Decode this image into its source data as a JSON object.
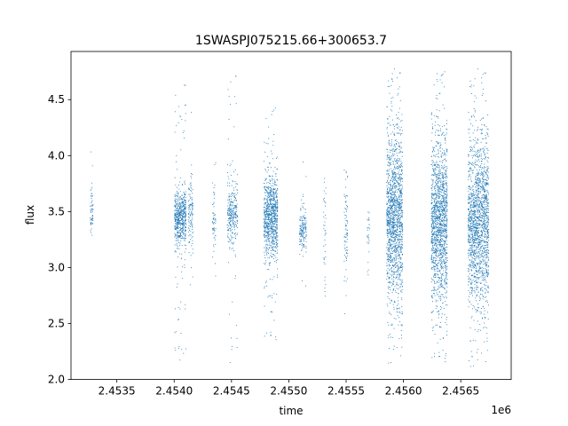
{
  "chart_data": {
    "type": "scatter",
    "title": "1SWASPJ075215.66+300653.7",
    "xlabel": "time",
    "ylabel": "flux",
    "x_offset_label": "1e6",
    "xlim": [
      2453100,
      2456940
    ],
    "ylim": [
      2.0,
      4.93
    ],
    "x_ticks": [
      2453500,
      2454000,
      2454500,
      2455000,
      2455500,
      2456000,
      2456500
    ],
    "x_tick_labels": [
      "2.4535",
      "2.4540",
      "2.4545",
      "2.4550",
      "2.4555",
      "2.4560",
      "2.4565"
    ],
    "y_ticks": [
      2.0,
      2.5,
      3.0,
      3.5,
      4.0,
      4.5
    ],
    "y_tick_labels": [
      "2.0",
      "2.5",
      "3.0",
      "3.5",
      "4.0",
      "4.5"
    ],
    "grid": false,
    "legend": "none",
    "point_color": "#1f77b4",
    "series": [
      {
        "clusters": [
          {
            "x_range": [
              2453265,
              2453290
            ],
            "y_center": 3.5,
            "y_spread": 0.1,
            "y_min": 3.2,
            "y_max": 4.05,
            "count": 60
          },
          {
            "x_range": [
              2454000,
              2454100
            ],
            "y_center": 3.45,
            "y_spread": 0.12,
            "y_min": 2.15,
            "y_max": 4.65,
            "count": 600
          },
          {
            "x_range": [
              2454120,
              2454160
            ],
            "y_center": 3.5,
            "y_spread": 0.15,
            "y_min": 2.5,
            "y_max": 4.45,
            "count": 120
          },
          {
            "x_range": [
              2454330,
              2454360
            ],
            "y_center": 3.4,
            "y_spread": 0.15,
            "y_min": 2.8,
            "y_max": 4.15,
            "count": 60
          },
          {
            "x_range": [
              2454460,
              2454550
            ],
            "y_center": 3.5,
            "y_spread": 0.15,
            "y_min": 2.15,
            "y_max": 4.75,
            "count": 300
          },
          {
            "x_range": [
              2454780,
              2454900
            ],
            "y_center": 3.45,
            "y_spread": 0.18,
            "y_min": 2.35,
            "y_max": 4.45,
            "count": 900
          },
          {
            "x_range": [
              2455090,
              2455150
            ],
            "y_center": 3.35,
            "y_spread": 0.1,
            "y_min": 2.8,
            "y_max": 4.05,
            "count": 150
          },
          {
            "x_range": [
              2455300,
              2455320
            ],
            "y_center": 3.35,
            "y_spread": 0.2,
            "y_min": 2.7,
            "y_max": 3.8,
            "count": 40
          },
          {
            "x_range": [
              2455480,
              2455510
            ],
            "y_center": 3.35,
            "y_spread": 0.25,
            "y_min": 2.4,
            "y_max": 3.95,
            "count": 80
          },
          {
            "x_range": [
              2455680,
              2455700
            ],
            "y_center": 3.3,
            "y_spread": 0.15,
            "y_min": 2.9,
            "y_max": 3.5,
            "count": 30
          },
          {
            "x_range": [
              2455850,
              2455990
            ],
            "y_center": 3.45,
            "y_spread": 0.35,
            "y_min": 2.15,
            "y_max": 4.78,
            "count": 1500
          },
          {
            "x_range": [
              2456240,
              2456380
            ],
            "y_center": 3.4,
            "y_spread": 0.35,
            "y_min": 2.15,
            "y_max": 4.78,
            "count": 1500
          },
          {
            "x_range": [
              2456560,
              2456740
            ],
            "y_center": 3.4,
            "y_spread": 0.35,
            "y_min": 2.12,
            "y_max": 4.78,
            "count": 1700
          }
        ]
      }
    ]
  }
}
